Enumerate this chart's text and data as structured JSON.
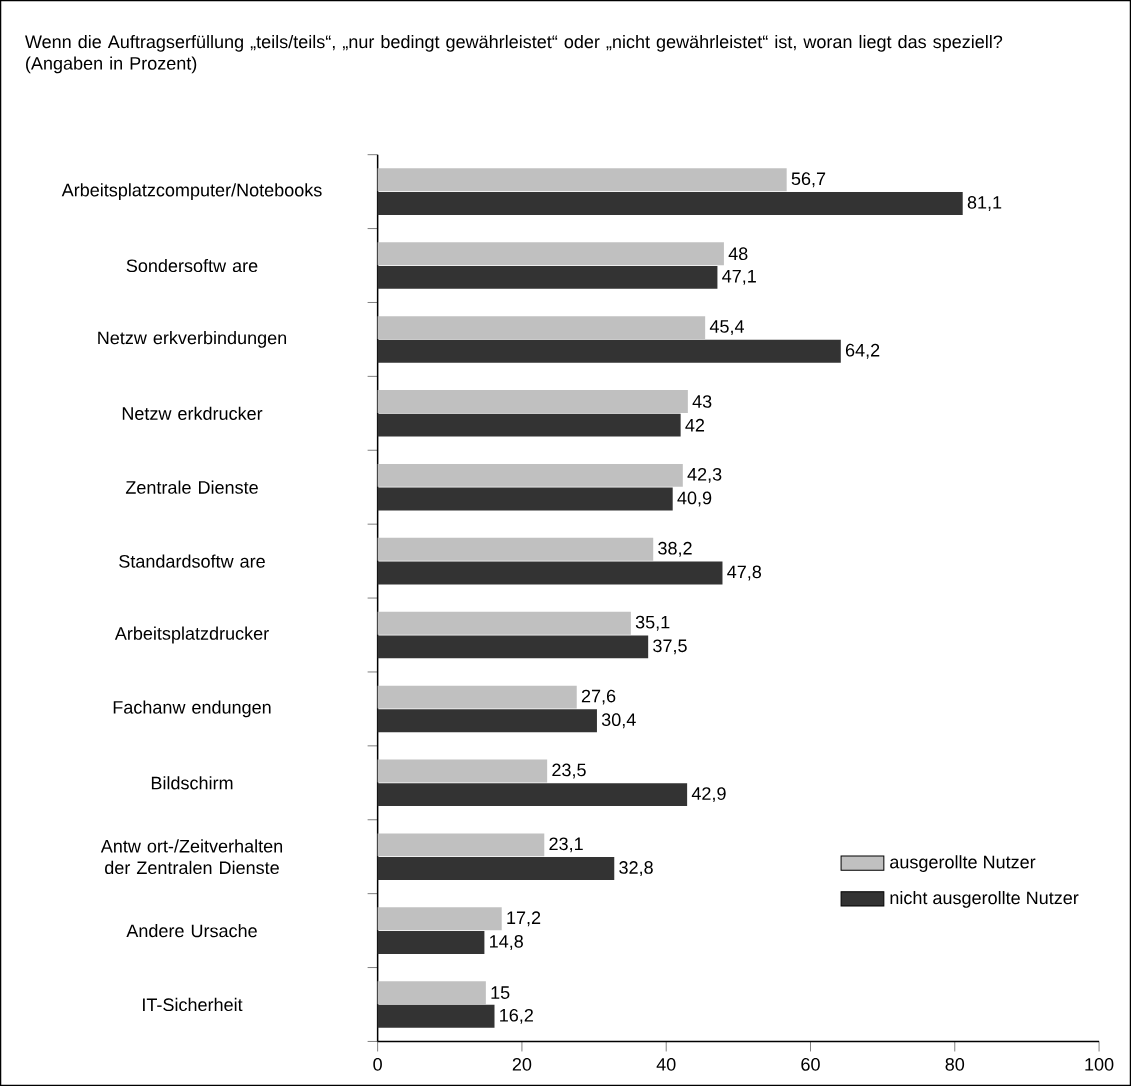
{
  "chart_data": {
    "type": "bar",
    "orientation": "horizontal",
    "title": "Wenn die Auftragserfüllung „teils/teils“, „nur bedingt gewährleistet“ oder „nicht gewährleistet“ ist, woran liegt das speziell? (Angaben in Prozent)",
    "categories": [
      "Arbeitsplatzcomputer/Notebooks",
      "Sondersoftw are",
      "Netzw erkverbindungen",
      "Netzw erkdrucker",
      "Zentrale Dienste",
      "Standardsoftw are",
      "Arbeitsplatzdrucker",
      "Fachanw endungen",
      "Bildschirm",
      "Antw ort-/Zeitverhalten der Zentralen Dienste",
      "Andere Ursache",
      "IT-Sicherheit"
    ],
    "series": [
      {
        "name": "ausgerollte Nutzer",
        "color": "#c0c0c0",
        "values": [
          56.7,
          48,
          45.4,
          43,
          42.3,
          38.2,
          35.1,
          27.6,
          23.5,
          23.1,
          17.2,
          15
        ],
        "value_labels": [
          "56,7",
          "48",
          "45,4",
          "43",
          "42,3",
          "38,2",
          "35,1",
          "27,6",
          "23,5",
          "23,1",
          "17,2",
          "15"
        ]
      },
      {
        "name": "nicht ausgerollte Nutzer",
        "color": "#333333",
        "values": [
          81.1,
          47.1,
          64.2,
          42,
          40.9,
          47.8,
          37.5,
          30.4,
          42.9,
          32.8,
          14.8,
          16.2
        ],
        "value_labels": [
          "81,1",
          "47,1",
          "64,2",
          "42",
          "40,9",
          "47,8",
          "37,5",
          "30,4",
          "42,9",
          "32,8",
          "14,8",
          "16,2"
        ]
      }
    ],
    "xlim": [
      0,
      100
    ],
    "xticks": [
      0,
      20,
      40,
      60,
      80,
      100
    ],
    "legend": "bottom right"
  }
}
